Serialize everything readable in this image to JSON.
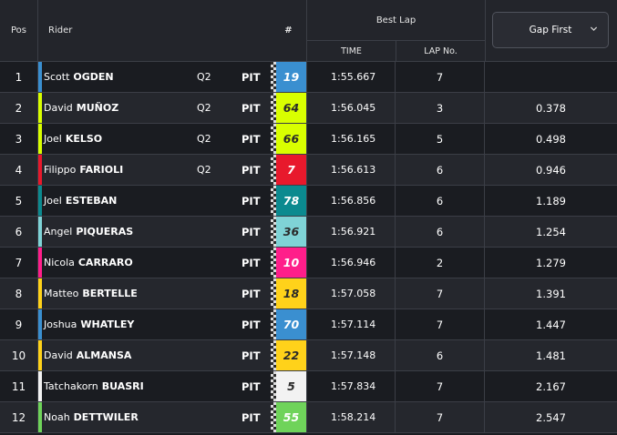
{
  "header": {
    "pos": "Pos",
    "rider": "Rider",
    "number": "#",
    "best_lap": "Best Lap",
    "time": "TIME",
    "lap_no": "LAP No.",
    "gap_select": "Gap First"
  },
  "rows": [
    {
      "pos": "1",
      "first": "Scott",
      "last": "OGDEN",
      "q": "Q2",
      "pit": "PIT",
      "num": "19",
      "num_bg": "#3a8fd0",
      "num_fg": "#ffffff",
      "stripe": "#3a8fd0",
      "time": "1:55.667",
      "lap": "7",
      "gap": ""
    },
    {
      "pos": "2",
      "first": "David",
      "last": "MUÑOZ",
      "q": "Q2",
      "pit": "PIT",
      "num": "64",
      "num_bg": "#d9ff00",
      "num_fg": "#2a2a2a",
      "stripe": "#d9ff00",
      "time": "1:56.045",
      "lap": "3",
      "gap": "0.378"
    },
    {
      "pos": "3",
      "first": "Joel",
      "last": "KELSO",
      "q": "Q2",
      "pit": "PIT",
      "num": "66",
      "num_bg": "#d9ff00",
      "num_fg": "#2a2a2a",
      "stripe": "#d9ff00",
      "time": "1:56.165",
      "lap": "5",
      "gap": "0.498"
    },
    {
      "pos": "4",
      "first": "Filippo",
      "last": "FARIOLI",
      "q": "Q2",
      "pit": "PIT",
      "num": "7",
      "num_bg": "#e8192c",
      "num_fg": "#ffffff",
      "stripe": "#e8192c",
      "time": "1:56.613",
      "lap": "6",
      "gap": "0.946"
    },
    {
      "pos": "5",
      "first": "Joel",
      "last": "ESTEBAN",
      "q": "",
      "pit": "PIT",
      "num": "78",
      "num_bg": "#0b8a8f",
      "num_fg": "#ffffff",
      "stripe": "#0b8a8f",
      "time": "1:56.856",
      "lap": "6",
      "gap": "1.189"
    },
    {
      "pos": "6",
      "first": "Angel",
      "last": "PIQUERAS",
      "q": "",
      "pit": "PIT",
      "num": "36",
      "num_bg": "#7fd3d6",
      "num_fg": "#2a2a2a",
      "stripe": "#7fd3d6",
      "time": "1:56.921",
      "lap": "6",
      "gap": "1.254"
    },
    {
      "pos": "7",
      "first": "Nicola",
      "last": "CARRARO",
      "q": "",
      "pit": "PIT",
      "num": "10",
      "num_bg": "#ff1e8a",
      "num_fg": "#ffffff",
      "stripe": "#ff1e8a",
      "time": "1:56.946",
      "lap": "2",
      "gap": "1.279"
    },
    {
      "pos": "8",
      "first": "Matteo",
      "last": "BERTELLE",
      "q": "",
      "pit": "PIT",
      "num": "18",
      "num_bg": "#ffd21a",
      "num_fg": "#2a2a2a",
      "stripe": "#ffd21a",
      "time": "1:57.058",
      "lap": "7",
      "gap": "1.391"
    },
    {
      "pos": "9",
      "first": "Joshua",
      "last": "WHATLEY",
      "q": "",
      "pit": "PIT",
      "num": "70",
      "num_bg": "#3a8fd0",
      "num_fg": "#ffffff",
      "stripe": "#3a8fd0",
      "time": "1:57.114",
      "lap": "7",
      "gap": "1.447"
    },
    {
      "pos": "10",
      "first": "David",
      "last": "ALMANSA",
      "q": "",
      "pit": "PIT",
      "num": "22",
      "num_bg": "#ffd21a",
      "num_fg": "#2a2a2a",
      "stripe": "#ffd21a",
      "time": "1:57.148",
      "lap": "6",
      "gap": "1.481"
    },
    {
      "pos": "11",
      "first": "Tatchakorn",
      "last": "BUASRI",
      "q": "",
      "pit": "PIT",
      "num": "5",
      "num_bg": "#f2f2f2",
      "num_fg": "#2a2a2a",
      "stripe": "#f2f2f2",
      "time": "1:57.834",
      "lap": "7",
      "gap": "2.167"
    },
    {
      "pos": "12",
      "first": "Noah",
      "last": "DETTWILER",
      "q": "",
      "pit": "PIT",
      "num": "55",
      "num_bg": "#6fd35a",
      "num_fg": "#ffffff",
      "stripe": "#6fd35a",
      "time": "1:58.214",
      "lap": "7",
      "gap": "2.547"
    }
  ]
}
